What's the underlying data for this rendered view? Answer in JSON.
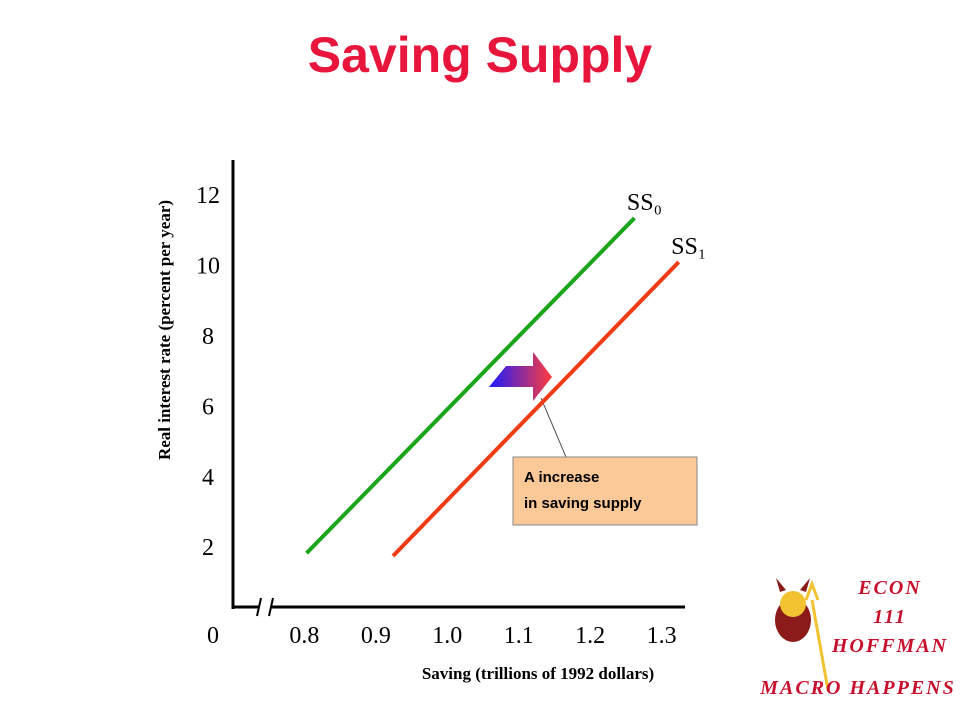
{
  "chart_data": {
    "type": "line",
    "title": "Saving Supply",
    "x_label": "Saving (trillions of 1992 dollars)",
    "y_label": "Real interest rate (percent per year)",
    "xlim": [
      0.7,
      1.33
    ],
    "ylim": [
      0.3,
      13
    ],
    "x_break": true,
    "xticks": [
      0,
      0.8,
      0.9,
      {
        "value": 1.0,
        "label": "1.0"
      },
      1.1,
      1.2,
      1.3
    ],
    "yticks": [
      2,
      4,
      6,
      8,
      10,
      12
    ],
    "series": [
      {
        "name": "SS₀",
        "color": "#1aa51a",
        "x": [
          0.803,
          1.262
        ],
        "values": [
          1.83,
          11.35
        ]
      },
      {
        "name": "SS₁",
        "color": "#f03c14",
        "x": [
          0.924,
          1.324
        ],
        "values": [
          1.75,
          10.1
        ]
      }
    ],
    "annotation": [
      "A increase",
      "in saving supply"
    ]
  },
  "branding": {
    "course": "ECON",
    "number": "111",
    "instructor": "HOFFMAN",
    "tagline": "MACRO HAPPENS"
  }
}
